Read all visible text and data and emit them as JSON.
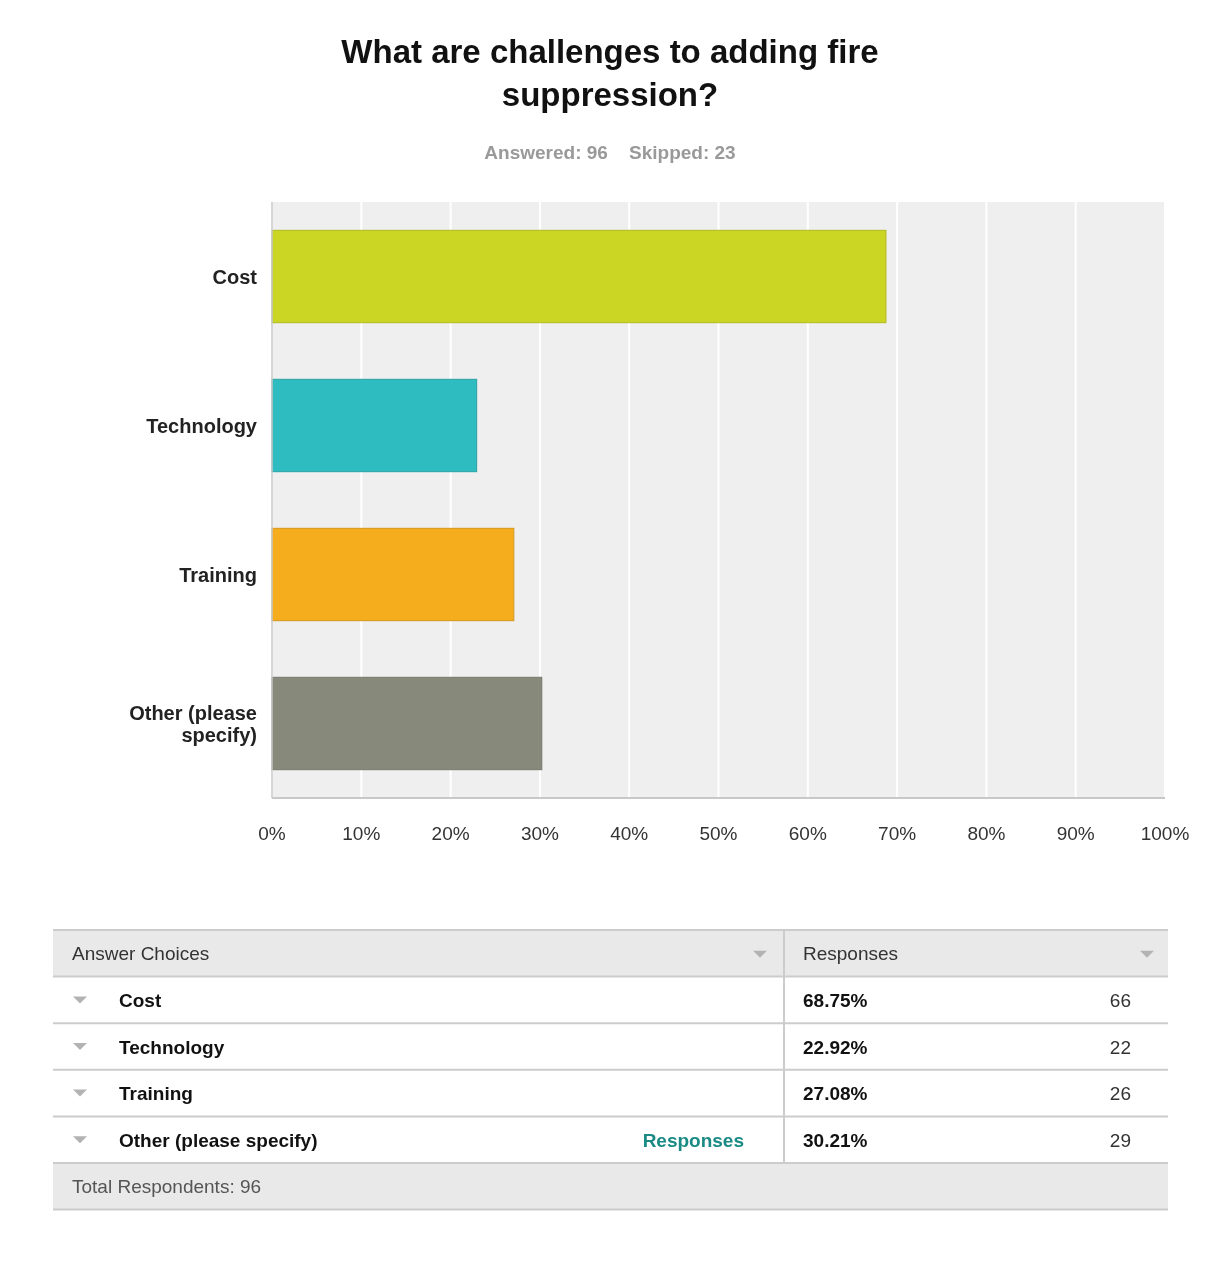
{
  "chart_data": {
    "type": "bar",
    "orientation": "horizontal",
    "title": "What are challenges to adding fire suppression?",
    "subtitle": "Answered: 96    Skipped: 23",
    "categories": [
      "Cost",
      "Technology",
      "Training",
      "Other (please specify)"
    ],
    "values": [
      68.75,
      22.92,
      27.08,
      30.21
    ],
    "colors": [
      "#cbd524",
      "#2fbcc0",
      "#f5ad1e",
      "#878a7a"
    ],
    "xlim": [
      0,
      100
    ],
    "xticks": [
      {
        "value": 0,
        "label": "0%"
      },
      {
        "value": 10,
        "label": "10%"
      },
      {
        "value": 20,
        "label": "20%"
      },
      {
        "value": 30,
        "label": "30%"
      },
      {
        "value": 40,
        "label": "40%"
      },
      {
        "value": 50,
        "label": "50%"
      },
      {
        "value": 60,
        "label": "60%"
      },
      {
        "value": 70,
        "label": "70%"
      },
      {
        "value": 80,
        "label": "80%"
      },
      {
        "value": 90,
        "label": "90%"
      },
      {
        "value": 100,
        "label": "100%"
      }
    ],
    "grid": "x",
    "annotations": [
      "Answer Choices",
      "Responses",
      "68.75%",
      "66",
      "22.92%",
      "22",
      "27.08%",
      "26",
      "30.21%",
      "29",
      "Responses",
      "Total Respondents: 96"
    ]
  }
}
